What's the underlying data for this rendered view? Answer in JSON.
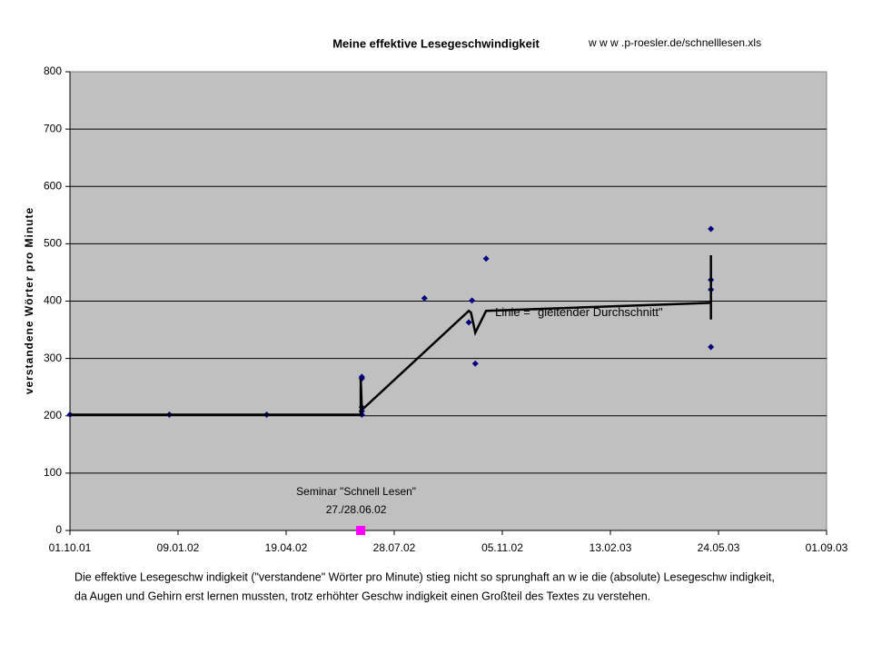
{
  "chart_data": {
    "type": "scatter",
    "title": "Meine effektive Lesegeschwindigkeit",
    "subtitle": "w w w .p-roesler.de/schnelllesen.xls",
    "y_label": "verstandene Wörter pro Minute",
    "xlim": [
      "2001-10-01",
      "2003-09-01"
    ],
    "xticks": [
      {
        "value": "2001-10-01",
        "label": "01.10.01"
      },
      {
        "value": "2002-01-09",
        "label": "09.01.02"
      },
      {
        "value": "2002-04-19",
        "label": "19.04.02"
      },
      {
        "value": "2002-07-28",
        "label": "28.07.02"
      },
      {
        "value": "2002-11-05",
        "label": "05.11.02"
      },
      {
        "value": "2003-02-13",
        "label": "13.02.03"
      },
      {
        "value": "2003-05-24",
        "label": "24.05.03"
      },
      {
        "value": "2003-09-01",
        "label": "01.09.03"
      }
    ],
    "ylim": [
      0,
      800
    ],
    "yticks": [
      0,
      100,
      200,
      300,
      400,
      500,
      600,
      700,
      800
    ],
    "grid": true,
    "series": [
      {
        "mode": "markers",
        "color": "#000080",
        "x": [
          "2001-10-01",
          "2002-01-01",
          "2002-04-01",
          "2002-06-28",
          "2002-06-28",
          "2002-06-28",
          "2002-06-28",
          "2002-06-28",
          "2002-08-25",
          "2002-10-05",
          "2002-10-08",
          "2002-10-11",
          "2002-10-21",
          "2003-05-17",
          "2003-05-17",
          "2003-05-17",
          "2003-05-17"
        ],
        "values": [
          202,
          202,
          202,
          268,
          265,
          215,
          208,
          202,
          405,
          363,
          401,
          291,
          474,
          526,
          437,
          420,
          320
        ]
      },
      {
        "mode": "line",
        "color": "#000000",
        "x": [
          "2001-10-01",
          "2002-06-27",
          "2002-06-27",
          "2002-06-28",
          "2002-06-28",
          "2002-10-05",
          "2002-10-07",
          "2002-10-11",
          "2002-10-21",
          "2003-05-17",
          "2003-05-17",
          "2003-05-17"
        ],
        "values": [
          202,
          202,
          265,
          215,
          210,
          383,
          380,
          345,
          383,
          397,
          480,
          368
        ]
      },
      {
        "mode": "square",
        "color": "#ff00ff",
        "x": [
          "2002-06-27"
        ],
        "values": [
          0
        ]
      }
    ],
    "annotations": [
      {
        "lines": [
          "Seminar \"Schnell Lesen\"",
          "27./28.06.02"
        ],
        "x": "2002-06-27",
        "y": 0,
        "color": "#993366"
      },
      {
        "lines": [
          "Linie = \"gleitender Durchschnitt\""
        ],
        "x": "2002-10-21",
        "y": 400,
        "color": "#000000"
      }
    ],
    "note": [
      "Die effektive Lesegeschw indigkeit (\"verstandene\" Wörter pro Minute) stieg nicht so sprunghaft an w ie die (absolute) Lesegeschw indigkeit,",
      "da Augen und Gehirn erst lernen mussten, trotz erhöhter Geschw indigkeit einen Großteil des Textes zu verstehen."
    ]
  }
}
